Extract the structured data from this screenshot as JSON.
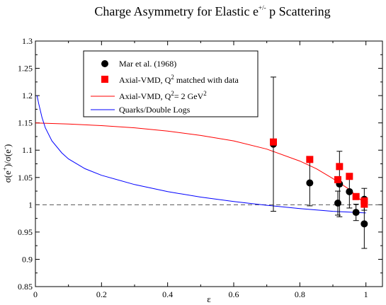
{
  "chart_data": {
    "type": "scatter",
    "title": {
      "main": "Charge Asymmetry for Elastic e",
      "sup": "+/-",
      "tail": " p Scattering"
    },
    "xlabel": "ε",
    "ylabel": {
      "a": "σ(e",
      "a_sup": "+",
      "b": ")/σ(e",
      "b_sup": "-",
      "c": ")"
    },
    "xlim": [
      0,
      1.05
    ],
    "ylim": [
      0.85,
      1.3
    ],
    "x_ticks": [
      0,
      0.2,
      0.4,
      0.6,
      0.8,
      1
    ],
    "x_tick_labels": [
      "0",
      "0.2",
      "0.4",
      "0.6",
      "0.8",
      "1"
    ],
    "y_ticks": [
      0.85,
      0.9,
      0.95,
      1,
      1.05,
      1.1,
      1.15,
      1.2,
      1.25,
      1.3
    ],
    "y_tick_labels": [
      "0.85",
      "0.9",
      "0.95",
      "1",
      "1.05",
      "1.1",
      "1.15",
      "1.2",
      "1.25",
      "1.3"
    ],
    "reference_line": {
      "y": 1,
      "style": "dashed",
      "color": "#555555"
    },
    "legend": [
      {
        "key": "mar",
        "marker": "circle",
        "color": "#000000",
        "text": "Mar et al. (1968)"
      },
      {
        "key": "vmd_pts",
        "marker": "square",
        "color": "#ff0000",
        "text": "Axial-VMD, Q",
        "sup": "2",
        "tail": " matched with data"
      },
      {
        "key": "vmd_line",
        "marker": "line",
        "color": "#ff0000",
        "text": "Axial-VMD, Q",
        "sup": "2",
        "tail": "= 2 GeV",
        "sup2": "2"
      },
      {
        "key": "quarks",
        "marker": "line",
        "color": "#0000ff",
        "text": "Quarks/Double Logs"
      }
    ],
    "series": [
      {
        "key": "mar",
        "type": "scatter",
        "color": "#000000",
        "points": [
          {
            "x": 0.72,
            "y": 1.111,
            "err": 0.123
          },
          {
            "x": 0.83,
            "y": 1.04,
            "err": 0.042
          },
          {
            "x": 0.915,
            "y": 1.003,
            "err": 0.022
          },
          {
            "x": 0.92,
            "y": 1.038,
            "err": 0.06
          },
          {
            "x": 0.95,
            "y": 1.024,
            "err": 0.03
          },
          {
            "x": 0.97,
            "y": 0.986,
            "err": 0.015
          },
          {
            "x": 0.995,
            "y": 1.01,
            "err": 0.02
          },
          {
            "x": 0.995,
            "y": 0.965,
            "err": 0.045
          }
        ]
      },
      {
        "key": "vmd_pts",
        "type": "scatter",
        "color": "#ff0000",
        "points": [
          {
            "x": 0.72,
            "y": 1.115
          },
          {
            "x": 0.83,
            "y": 1.083
          },
          {
            "x": 0.915,
            "y": 1.046
          },
          {
            "x": 0.92,
            "y": 1.07
          },
          {
            "x": 0.95,
            "y": 1.052
          },
          {
            "x": 0.97,
            "y": 1.015
          },
          {
            "x": 0.995,
            "y": 1.007
          },
          {
            "x": 0.995,
            "y": 1.001
          }
        ]
      },
      {
        "key": "vmd_line",
        "type": "line",
        "color": "#ff0000",
        "x": [
          0,
          0.1,
          0.2,
          0.3,
          0.4,
          0.5,
          0.6,
          0.7,
          0.8,
          0.85,
          0.9,
          0.95,
          1.0
        ],
        "y": [
          1.15,
          1.148,
          1.145,
          1.141,
          1.135,
          1.127,
          1.117,
          1.102,
          1.08,
          1.066,
          1.048,
          1.028,
          1.0
        ]
      },
      {
        "key": "quarks",
        "type": "line",
        "color": "#0000ff",
        "x": [
          0.005,
          0.01,
          0.02,
          0.03,
          0.05,
          0.08,
          0.1,
          0.15,
          0.2,
          0.3,
          0.4,
          0.5,
          0.6,
          0.7,
          0.8,
          0.9,
          1.0
        ],
        "y": [
          1.2,
          1.185,
          1.16,
          1.141,
          1.117,
          1.095,
          1.084,
          1.066,
          1.054,
          1.037,
          1.024,
          1.014,
          1.006,
          0.999,
          0.993,
          0.988,
          0.985
        ]
      }
    ]
  }
}
